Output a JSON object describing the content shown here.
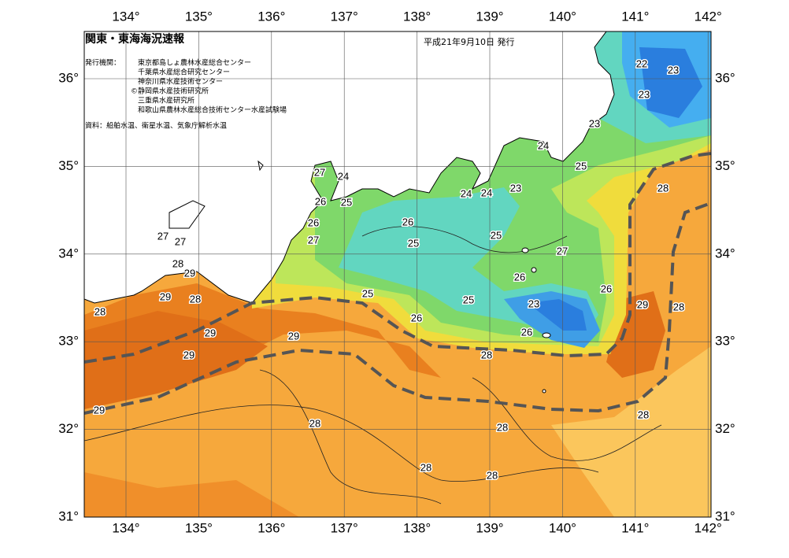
{
  "header": {
    "title": "関東・東海海況速報",
    "date": "平成21年9月10日 発行",
    "issuer_label": "発行機関：",
    "issuers": [
      "東京都島しょ農林水産総合センター",
      "千葉県水産総合研究センター",
      "神奈川県水産技術センター",
      "©静岡県水産技術研究所",
      "三重県水産研究所",
      "和歌山県農林水産総合技術センター水産試験場"
    ],
    "source": "資料：船舶水温、衛星水温、気象庁解析水温"
  },
  "map": {
    "lon_ticks": [
      {
        "value": 134,
        "label": "134°"
      },
      {
        "value": 135,
        "label": "135°"
      },
      {
        "value": 136,
        "label": "136°"
      },
      {
        "value": 137,
        "label": "137°"
      },
      {
        "value": 138,
        "label": "138°"
      },
      {
        "value": 139,
        "label": "139°"
      },
      {
        "value": 140,
        "label": "140°"
      },
      {
        "value": 141,
        "label": "141°"
      },
      {
        "value": 142,
        "label": "142°"
      }
    ],
    "lat_ticks": [
      {
        "value": 36,
        "label": "36°"
      },
      {
        "value": 35,
        "label": "35°"
      },
      {
        "value": 34,
        "label": "34°"
      },
      {
        "value": 33,
        "label": "33°"
      },
      {
        "value": 32,
        "label": "32°"
      },
      {
        "value": 31,
        "label": "31°"
      }
    ],
    "contour_labels": [
      22,
      23,
      23,
      23,
      24,
      25,
      28,
      27,
      24,
      26,
      25,
      24,
      24,
      23,
      26,
      27,
      26,
      25,
      25,
      27,
      26,
      26,
      25,
      25,
      23,
      29,
      28,
      26,
      26,
      28,
      27,
      27,
      28,
      29,
      29,
      28,
      28,
      29,
      29,
      29,
      29,
      28,
      28,
      28,
      28,
      28
    ]
  }
}
